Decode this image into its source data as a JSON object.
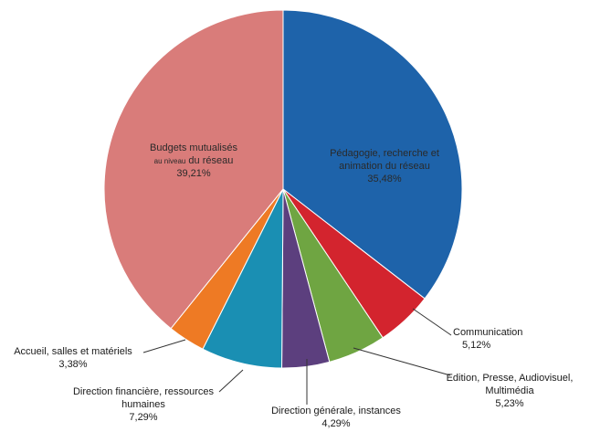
{
  "chart_data": {
    "type": "pie",
    "title": "",
    "start_angle_deg": 0,
    "direction": "clockwise",
    "slices": [
      {
        "name": "Pédagogie, recherche et animation du réseau",
        "value": 35.48,
        "value_label": "35,48%",
        "color": "#1E63AA",
        "label_lines": [
          "Pédagogie, recherche et",
          "animation du réseau"
        ],
        "label_mode": "inside"
      },
      {
        "name": "Communication",
        "value": 5.12,
        "value_label": "5,12%",
        "color": "#D3242E",
        "label_lines": [
          "Communication"
        ],
        "label_mode": "outside"
      },
      {
        "name": "Edition, Presse, Audiovisuel, Multimédia",
        "value": 5.23,
        "value_label": "5,23%",
        "color": "#6FA542",
        "label_lines": [
          "Edition, Presse, Audiovisuel,",
          "Multimédia"
        ],
        "label_mode": "outside"
      },
      {
        "name": "Direction générale, instances",
        "value": 4.29,
        "value_label": "4,29%",
        "color": "#5C3F7E",
        "label_lines": [
          "Direction générale, instances"
        ],
        "label_mode": "outside"
      },
      {
        "name": "Direction financière, ressources humaines",
        "value": 7.29,
        "value_label": "7,29%",
        "color": "#1A8FB3",
        "label_lines": [
          "Direction financière, ressources",
          "humaines"
        ],
        "label_mode": "outside"
      },
      {
        "name": "Accueil, salles et matériels",
        "value": 3.38,
        "value_label": "3,38%",
        "color": "#EE7A24",
        "label_lines": [
          "Accueil, salles et matériels"
        ],
        "label_mode": "outside"
      },
      {
        "name": "Budgets mutualisés au niveau du réseau",
        "value": 39.21,
        "value_label": "39,21%",
        "color": "#D97C7A",
        "label_lines": [
          "Budgets mutualisés"
        ],
        "label_parts": [
          "au niveau",
          " du réseau"
        ],
        "label_mode": "inside"
      }
    ]
  }
}
